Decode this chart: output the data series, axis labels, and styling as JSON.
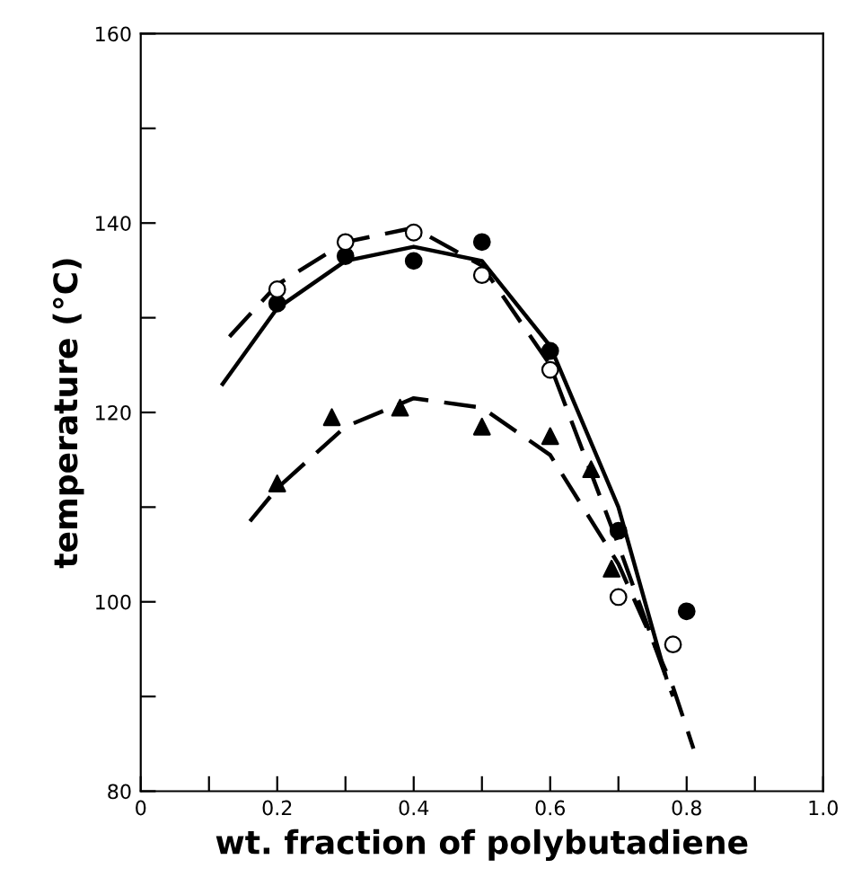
{
  "chart_data": {
    "type": "scatter",
    "xlabel": "wt. fraction of polybutadiene",
    "ylabel": "temperature (°C)",
    "xlim": [
      0,
      1.0
    ],
    "ylim": [
      80,
      160
    ],
    "xticks": [
      0,
      {
        "value": 0.1,
        "label": null
      },
      0.2,
      {
        "value": 0.3,
        "label": null
      },
      0.4,
      {
        "value": 0.5,
        "label": null
      },
      0.6,
      {
        "value": 0.7,
        "label": null
      },
      0.8,
      {
        "value": 0.9,
        "label": null
      },
      {
        "value": 1.0,
        "label": "1.0"
      }
    ],
    "yticks": [
      80,
      {
        "value": 90,
        "label": null
      },
      100,
      {
        "value": 110,
        "label": null
      },
      120,
      {
        "value": 130,
        "label": null
      },
      140,
      {
        "value": 150,
        "label": null
      },
      160
    ],
    "grid": false,
    "legend": false,
    "series": [
      {
        "marker": "circle",
        "color": "#000000",
        "x": [
          0.2,
          0.3,
          0.4,
          0.5,
          0.6,
          0.7,
          0.8
        ],
        "values": [
          131.5,
          136.5,
          136,
          138,
          126.5,
          107.5,
          99
        ]
      },
      {
        "marker": "circle",
        "color": "#ffffff",
        "x": [
          0.2,
          0.3,
          0.4,
          0.5,
          0.6,
          0.7,
          0.78
        ],
        "values": [
          133,
          138,
          139,
          134.5,
          124.5,
          100.5,
          95.5
        ]
      },
      {
        "marker": "triangle",
        "color": "#000000",
        "x": [
          0.2,
          0.28,
          0.38,
          0.5,
          0.6,
          0.66,
          0.69
        ],
        "values": [
          112.5,
          119.5,
          120.5,
          118.5,
          117.5,
          114,
          103.5
        ]
      },
      {
        "type": "line",
        "line_style": "solid",
        "color": "#000000",
        "x": [
          0.12,
          0.2,
          0.3,
          0.4,
          0.5,
          0.6,
          0.7,
          0.77
        ],
        "values": [
          123,
          131,
          136,
          137.5,
          136,
          127,
          110,
          92
        ]
      },
      {
        "type": "line",
        "line_style": "dashed",
        "color": "#000000",
        "x": [
          0.13,
          0.2,
          0.3,
          0.4,
          0.5,
          0.6,
          0.7,
          0.78
        ],
        "values": [
          128,
          133.5,
          138,
          139.5,
          135.5,
          125,
          106,
          90
        ]
      },
      {
        "type": "line",
        "line_style": "dashed",
        "color": "#000000",
        "x": [
          0.16,
          0.2,
          0.3,
          0.4,
          0.5,
          0.6,
          0.7,
          0.78,
          0.81
        ],
        "values": [
          108.5,
          112,
          118.5,
          121.5,
          120.5,
          115.5,
          104,
          91,
          84.5
        ]
      }
    ]
  }
}
